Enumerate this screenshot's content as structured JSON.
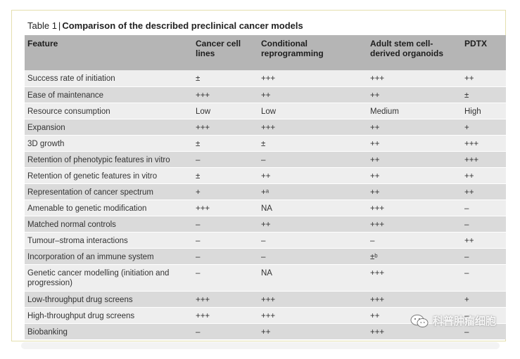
{
  "table": {
    "number": "Table 1",
    "separator": "|",
    "name": "Comparison of the described preclinical cancer models",
    "headers": [
      "Feature",
      "Cancer cell lines",
      "Conditional reprogramming",
      "Adult stem cell-derived organoids",
      "PDTX"
    ],
    "rows": [
      [
        "Success rate of initiation",
        "±",
        "+++",
        "+++",
        "++"
      ],
      [
        "Ease of maintenance",
        "+++",
        "++",
        "++",
        "±"
      ],
      [
        "Resource consumption",
        "Low",
        "Low",
        "Medium",
        "High"
      ],
      [
        "Expansion",
        "+++",
        "+++",
        "++",
        "+"
      ],
      [
        "3D growth",
        "±",
        "±",
        "++",
        "+++"
      ],
      [
        "Retention of phenotypic features in vitro",
        "–",
        "–",
        "++",
        "+++"
      ],
      [
        "Retention of genetic features in vitro",
        "±",
        "++",
        "++",
        "++"
      ],
      [
        "Representation of cancer spectrum",
        "+",
        "+ᵃ",
        "++",
        "++"
      ],
      [
        "Amenable to genetic modification",
        "+++",
        "NA",
        "+++",
        "–"
      ],
      [
        "Matched normal controls",
        "–",
        "++",
        "+++",
        "–"
      ],
      [
        "Tumour–stroma interactions",
        "–",
        "–",
        "–",
        "++"
      ],
      [
        "Incorporation of an immune system",
        "–",
        "–",
        "±ᵇ",
        "–"
      ],
      [
        "Genetic cancer modelling (initiation and progression)",
        "–",
        "NA",
        "+++",
        "–"
      ],
      [
        "Low-throughput drug screens",
        "+++",
        "+++",
        "+++",
        "+"
      ],
      [
        "High-throughput drug screens",
        "+++",
        "+++",
        "++",
        "–"
      ],
      [
        "Biobanking",
        "–",
        "++",
        "+++",
        "–"
      ]
    ]
  },
  "watermark": {
    "text": "科普肿瘤细胞",
    "icon": "wechat-icon"
  },
  "colors": {
    "header_bg": "#b5b5b5",
    "row_light": "#eeeeee",
    "row_dark": "#dadada",
    "frame_border": "#e4dfae"
  }
}
